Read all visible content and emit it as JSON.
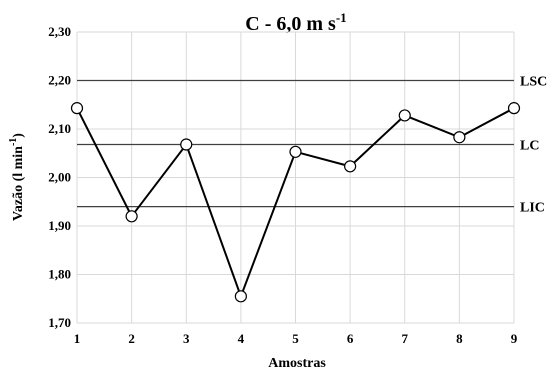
{
  "chart_data": {
    "type": "line",
    "title": "C - 6,0 m s",
    "title_superscript": "-1",
    "xlabel": "Amostras",
    "ylabel": "Vazão (l min",
    "ylabel_superscript": "-1",
    "ylabel_suffix": ")",
    "x": [
      1,
      2,
      3,
      4,
      5,
      6,
      7,
      8,
      9
    ],
    "x_tick_labels": [
      "1",
      "2",
      "3",
      "4",
      "5",
      "6",
      "7",
      "8",
      "9"
    ],
    "y_tick_labels": [
      "1,70",
      "1,80",
      "1,90",
      "2,00",
      "2,10",
      "2,20",
      "2,30"
    ],
    "y_ticks": [
      1.7,
      1.8,
      1.9,
      2.0,
      2.1,
      2.2,
      2.3
    ],
    "ylim": [
      1.7,
      2.3
    ],
    "xlim": [
      1,
      9
    ],
    "series": [
      {
        "values": [
          2.143,
          1.92,
          2.068,
          1.755,
          2.053,
          2.023,
          2.128,
          2.083,
          2.143
        ]
      }
    ],
    "reference_lines": [
      {
        "label": "LSC",
        "value": 2.2
      },
      {
        "label": "LC",
        "value": 2.068
      },
      {
        "label": "LIC",
        "value": 1.94
      }
    ],
    "grid": true,
    "legend": "none",
    "colors": {
      "line": "#000000",
      "marker_fill": "#ffffff",
      "grid": "#d9d9d9",
      "reference": "#404040"
    }
  }
}
